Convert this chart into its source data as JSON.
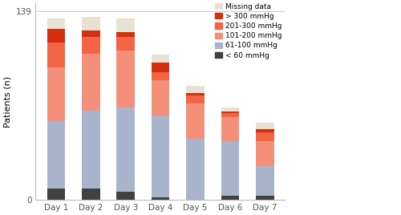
{
  "categories": [
    "Day 1",
    "Day 2",
    "Day 3",
    "Day 4",
    "Day 5",
    "Day 6",
    "Day 7"
  ],
  "segments": {
    "< 60 mmHg": [
      8,
      8,
      6,
      2,
      0,
      3,
      3
    ],
    "61-100 mmHg": [
      50,
      58,
      62,
      60,
      45,
      40,
      22
    ],
    "101-200 mmHg": [
      40,
      42,
      42,
      26,
      26,
      18,
      18
    ],
    "201-300 mmHg": [
      18,
      12,
      10,
      6,
      6,
      3,
      7
    ],
    "> 300 mmHg": [
      10,
      5,
      4,
      7,
      2,
      1,
      2
    ],
    "Missing data": [
      8,
      10,
      10,
      6,
      5,
      3,
      5
    ]
  },
  "colors": {
    "< 60 mmHg": "#404040",
    "61-100 mmHg": "#aab3cc",
    "101-200 mmHg": "#f4907a",
    "201-300 mmHg": "#f26444",
    "> 300 mmHg": "#d43010",
    "Missing data": "#e8e2d4"
  },
  "ylabel": "Patients (n)",
  "yticks": [
    0,
    139
  ],
  "ylim": [
    0,
    145
  ],
  "figsize": [
    5.0,
    2.68
  ],
  "dpi": 100,
  "bar_width": 0.52,
  "legend_order": [
    "Missing data",
    "> 300 mmHg",
    "201-300 mmHg",
    "101-200 mmHg",
    "61-100 mmHg",
    "< 60 mmHg"
  ],
  "legend_fontsize": 6.5,
  "tick_fontsize": 7.5,
  "ylabel_fontsize": 8
}
